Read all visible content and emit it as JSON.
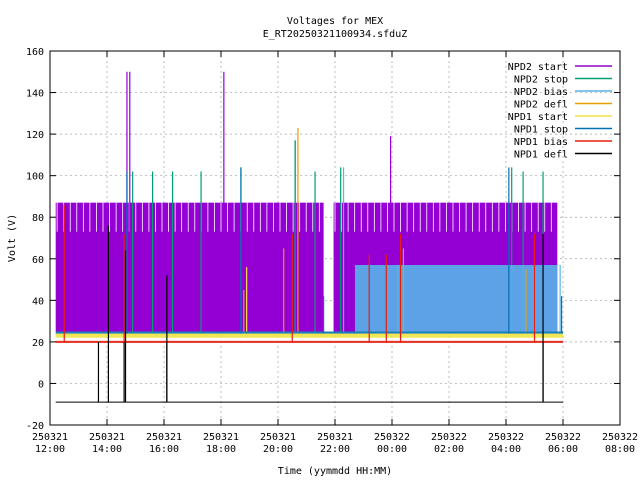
{
  "chart_data": {
    "type": "line",
    "title": "Voltages for MEX",
    "subtitle": "E_RT20250321100934.sfduZ",
    "xlabel": "Time (yymmdd HH:MM)",
    "ylabel": "Volt (V)",
    "xlim": [
      12,
      32
    ],
    "ylim": [
      -20,
      160
    ],
    "grid": true,
    "legend_position": "top-right",
    "x_ticks": [
      {
        "x": 12,
        "date": "250321",
        "time": "12:00"
      },
      {
        "x": 14,
        "date": "250321",
        "time": "14:00"
      },
      {
        "x": 16,
        "date": "250321",
        "time": "16:00"
      },
      {
        "x": 18,
        "date": "250321",
        "time": "18:00"
      },
      {
        "x": 20,
        "date": "250321",
        "time": "20:00"
      },
      {
        "x": 22,
        "date": "250321",
        "time": "22:00"
      },
      {
        "x": 24,
        "date": "250322",
        "time": "00:00"
      },
      {
        "x": 26,
        "date": "250322",
        "time": "02:00"
      },
      {
        "x": 28,
        "date": "250322",
        "time": "04:00"
      },
      {
        "x": 30,
        "date": "250322",
        "time": "06:00"
      },
      {
        "x": 32,
        "date": "250322",
        "time": "08:00"
      }
    ],
    "y_ticks": [
      -20,
      0,
      20,
      40,
      60,
      80,
      100,
      120,
      140,
      160
    ],
    "series": [
      {
        "name": "NPD2 start",
        "color": "#9400d3",
        "bands": [
          {
            "x0": 12.2,
            "x1": 21.6,
            "low": 25,
            "high": 87
          },
          {
            "x0": 21.95,
            "x1": 29.8,
            "low": 25,
            "high": 87
          }
        ],
        "spikes": [
          {
            "x": 14.7,
            "y": 150
          },
          {
            "x": 14.8,
            "y": 150
          },
          {
            "x": 18.1,
            "y": 150
          },
          {
            "x": 23.95,
            "y": 119
          },
          {
            "x": 20.6,
            "y": 117
          },
          {
            "x": 22.1,
            "y": 72
          },
          {
            "x": 27.3,
            "y": 72
          }
        ]
      },
      {
        "name": "NPD2 stop",
        "color": "#009e73",
        "bands": [],
        "spikes": [
          {
            "x": 14.9,
            "y": 102
          },
          {
            "x": 15.6,
            "y": 102
          },
          {
            "x": 16.3,
            "y": 102
          },
          {
            "x": 17.3,
            "y": 102
          },
          {
            "x": 18.7,
            "y": 104
          },
          {
            "x": 20.6,
            "y": 117
          },
          {
            "x": 21.3,
            "y": 102
          },
          {
            "x": 22.2,
            "y": 104
          },
          {
            "x": 28.2,
            "y": 104
          },
          {
            "x": 28.6,
            "y": 102
          },
          {
            "x": 29.3,
            "y": 102
          }
        ]
      },
      {
        "name": "NPD2 bias",
        "color": "#56b4e9",
        "bands": [
          {
            "x0": 22.7,
            "x1": 29.8,
            "low": 25,
            "high": 57
          }
        ],
        "spikes": [
          {
            "x": 22.3,
            "y": 104
          },
          {
            "x": 24.2,
            "y": 57
          },
          {
            "x": 29.9,
            "y": 57
          }
        ]
      },
      {
        "name": "NPD2 defl",
        "color": "#e69f00",
        "bands": [],
        "spikes": [
          {
            "x": 20.7,
            "y": 123
          },
          {
            "x": 20.2,
            "y": 65
          },
          {
            "x": 24.4,
            "y": 65
          },
          {
            "x": 28.7,
            "y": 55
          },
          {
            "x": 18.8,
            "y": 45
          }
        ]
      },
      {
        "name": "NPD1 start",
        "color": "#f0e442",
        "bands": [
          {
            "x0": 12.2,
            "x1": 30.0,
            "low": 22,
            "high": 24
          }
        ],
        "spikes": [
          {
            "x": 18.9,
            "y": 56
          },
          {
            "x": 29.0,
            "y": 56
          }
        ]
      },
      {
        "name": "NPD1 stop",
        "color": "#0072b2",
        "bands": [
          {
            "x0": 12.2,
            "x1": 30.0,
            "low": 24,
            "high": 25
          }
        ],
        "spikes": [
          {
            "x": 14.7,
            "y": 102
          },
          {
            "x": 18.7,
            "y": 104
          },
          {
            "x": 28.1,
            "y": 104
          },
          {
            "x": 21.6,
            "y": 42
          },
          {
            "x": 29.95,
            "y": 42
          }
        ]
      },
      {
        "name": "NPD1 bias",
        "color": "#e51e10",
        "bands": [
          {
            "x0": 12.2,
            "x1": 30.0,
            "low": 19.5,
            "high": 20.5
          }
        ],
        "spikes": [
          {
            "x": 12.5,
            "y": 86
          },
          {
            "x": 14.6,
            "y": 72
          },
          {
            "x": 20.5,
            "y": 72
          },
          {
            "x": 23.2,
            "y": 62
          },
          {
            "x": 23.8,
            "y": 62
          },
          {
            "x": 24.3,
            "y": 72
          },
          {
            "x": 29.0,
            "y": 72
          }
        ]
      },
      {
        "name": "NPD1 defl",
        "color": "#000000",
        "bands": [
          {
            "x0": 12.2,
            "x1": 30.0,
            "low": -9,
            "high": -9
          }
        ],
        "spikes": [
          {
            "x": 14.05,
            "y": 76
          },
          {
            "x": 14.65,
            "y": 64
          },
          {
            "x": 16.1,
            "y": 52
          },
          {
            "x": 29.3,
            "y": 72
          }
        ],
        "dips": [
          {
            "x": 13.7,
            "y": -9
          },
          {
            "x": 14.6,
            "y": -9
          },
          {
            "x": 16.1,
            "y": -9
          },
          {
            "x": 29.3,
            "y": -9
          }
        ]
      }
    ]
  }
}
